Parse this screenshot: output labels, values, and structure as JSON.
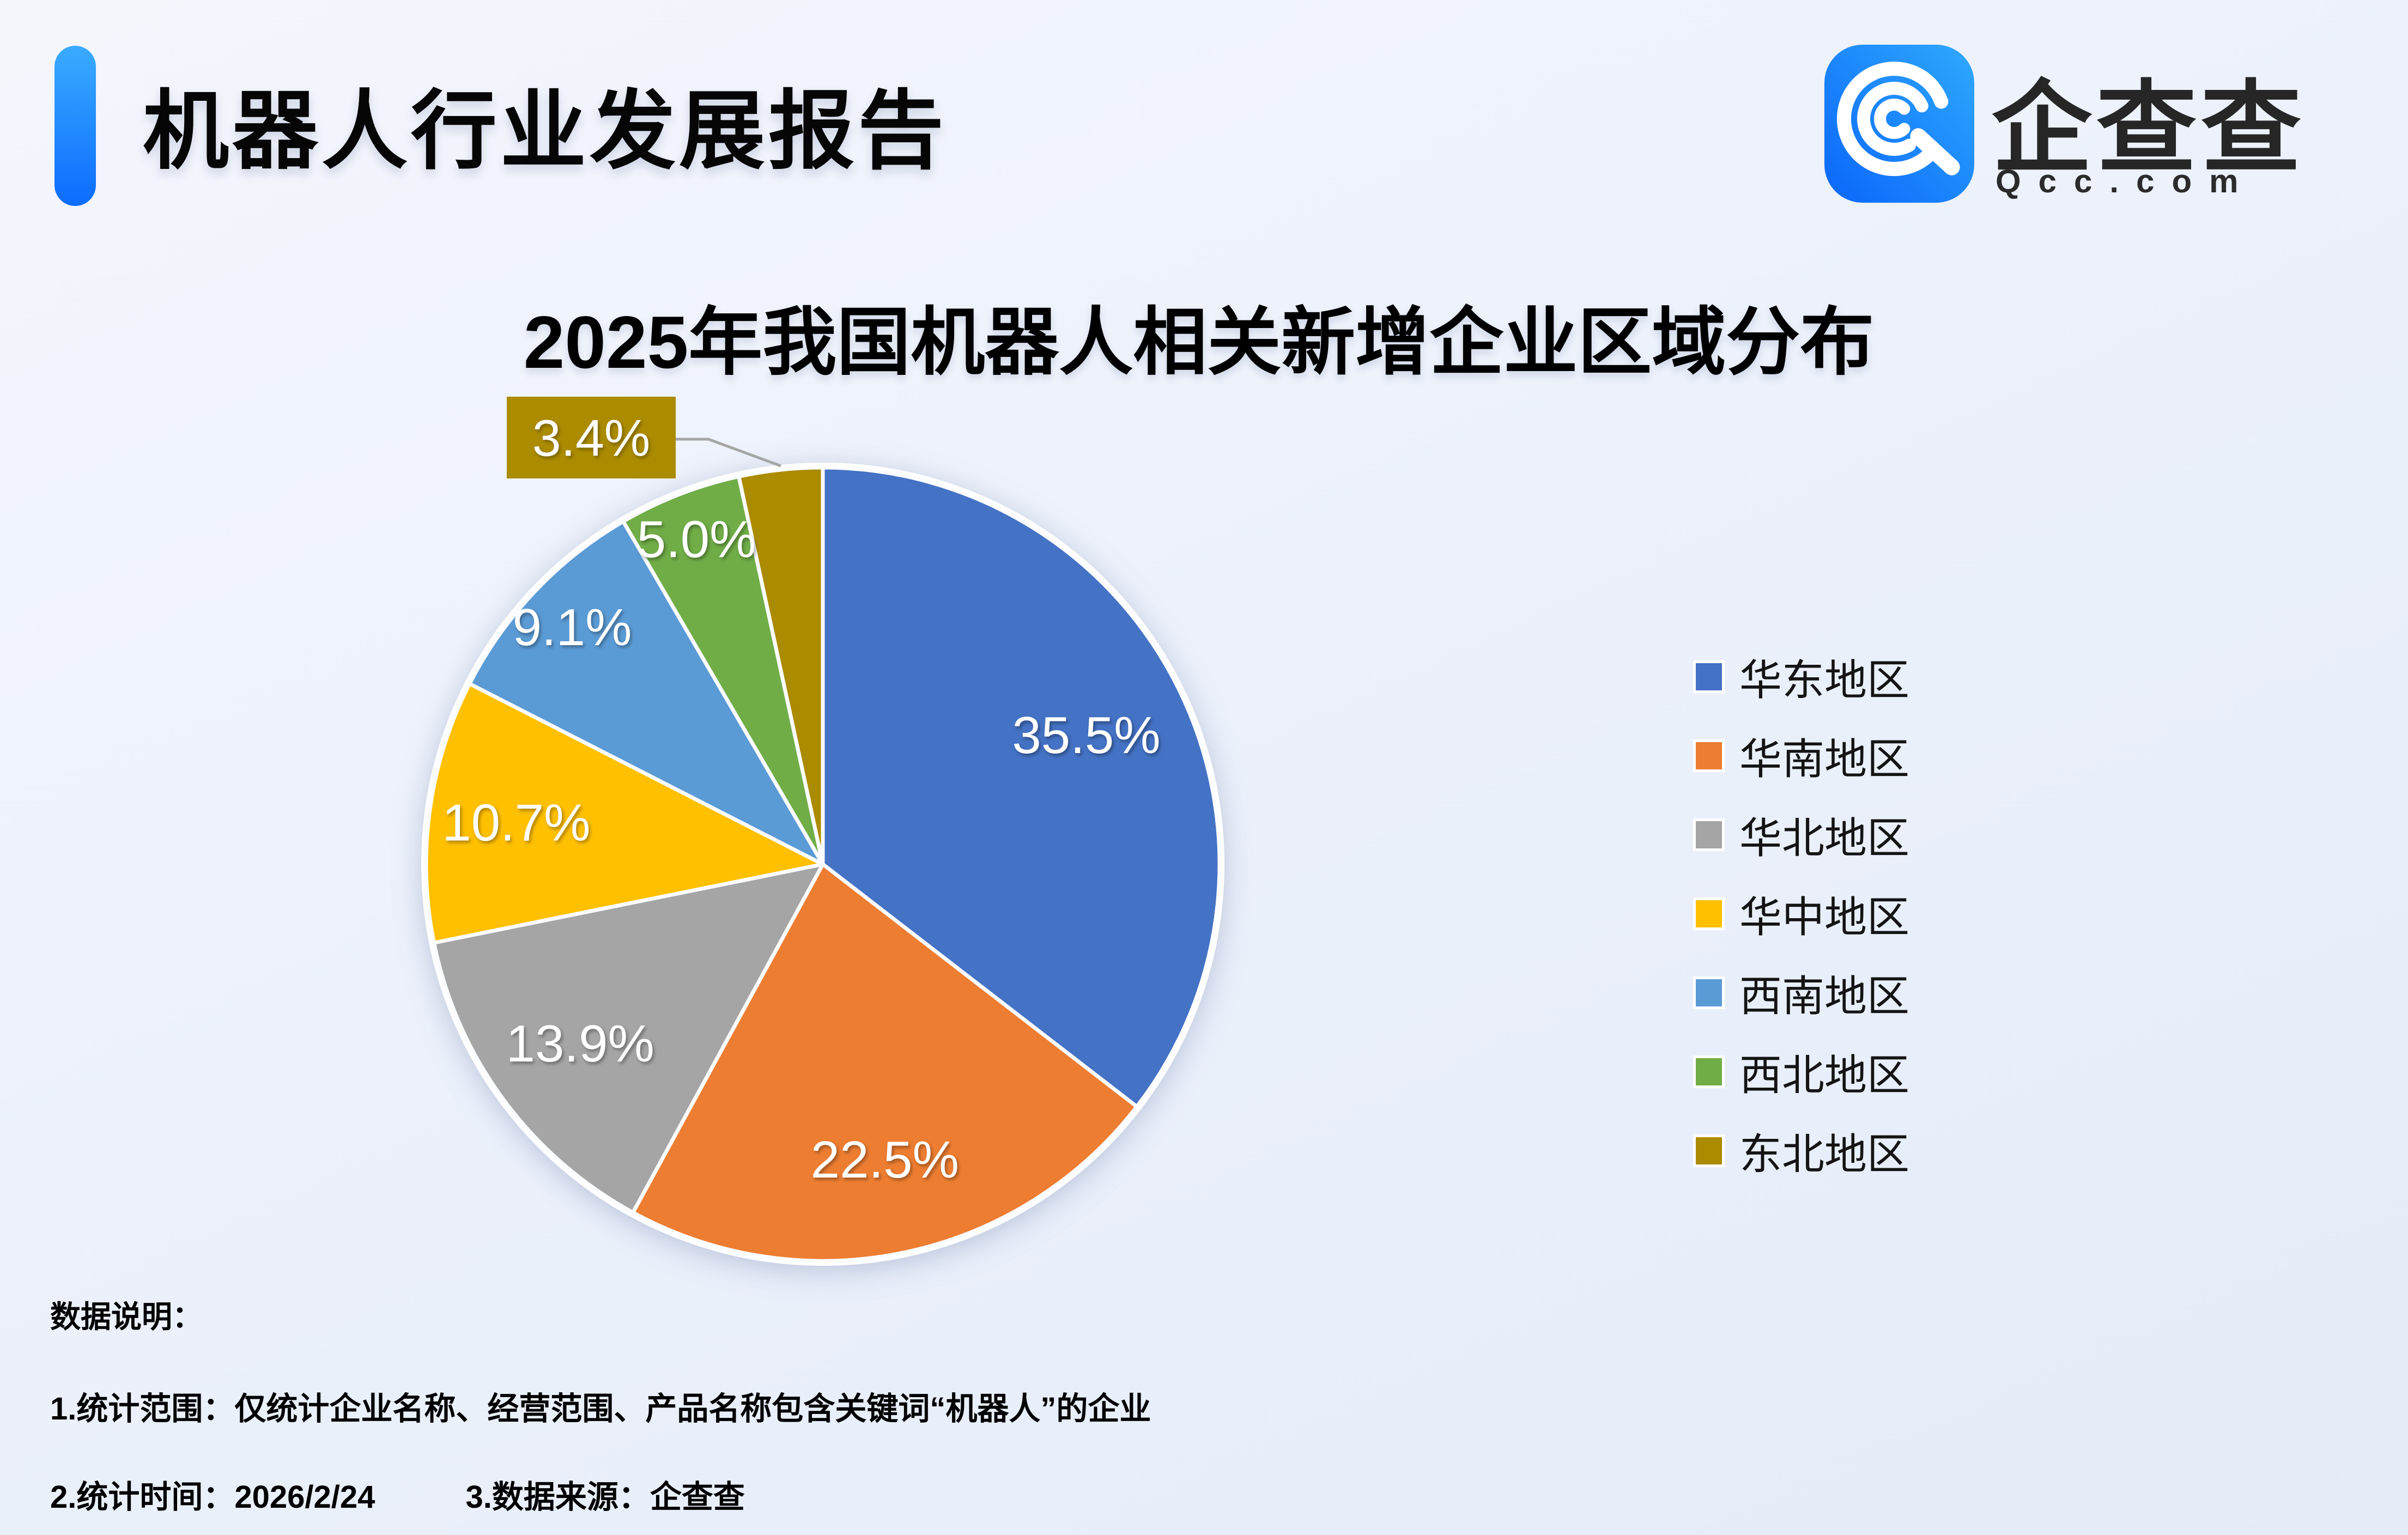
{
  "header": {
    "title": "机器人行业发展报告",
    "accent_color_top": "#3aabff",
    "accent_color_bottom": "#0b6cff"
  },
  "logo": {
    "brand": "企查查",
    "domain": "Qcc.com",
    "icon": "qcc-magnifier-icon",
    "icon_gradient_left": "#0a66fb",
    "icon_gradient_right": "#2fa9fd"
  },
  "chart_data": {
    "type": "pie",
    "title": "2025年我国机器人相关新增企业区域分布",
    "categories": [
      "华东地区",
      "华南地区",
      "华北地区",
      "华中地区",
      "西南地区",
      "西北地区",
      "东北地区"
    ],
    "values": [
      35.5,
      22.5,
      13.9,
      10.7,
      9.1,
      5.0,
      3.4
    ],
    "labels": [
      "35.5%",
      "22.5%",
      "13.9%",
      "10.7%",
      "9.1%",
      "5.0%",
      "3.4%"
    ],
    "colors": [
      "#4472C4",
      "#ED7D31",
      "#A5A5A5",
      "#FFC000",
      "#5B9BD5",
      "#70AD47",
      "#AB8B00"
    ],
    "start_angle_deg": 0,
    "direction": "clockwise",
    "legend_position": "right",
    "label_placement": "inside-white",
    "callout_slice": "东北地区",
    "callout_leader_color": "#A6A6A6",
    "slice_border_color": "#fbfcfe"
  },
  "footnotes": {
    "heading": "数据说明：",
    "line1": "1.统计范围：仅统计企业名称、经营范围、产品名称包含关键词“机器人”的企业",
    "line2a": "2.统计时间：2026/2/24",
    "line2b": "3.数据来源：企查查"
  }
}
